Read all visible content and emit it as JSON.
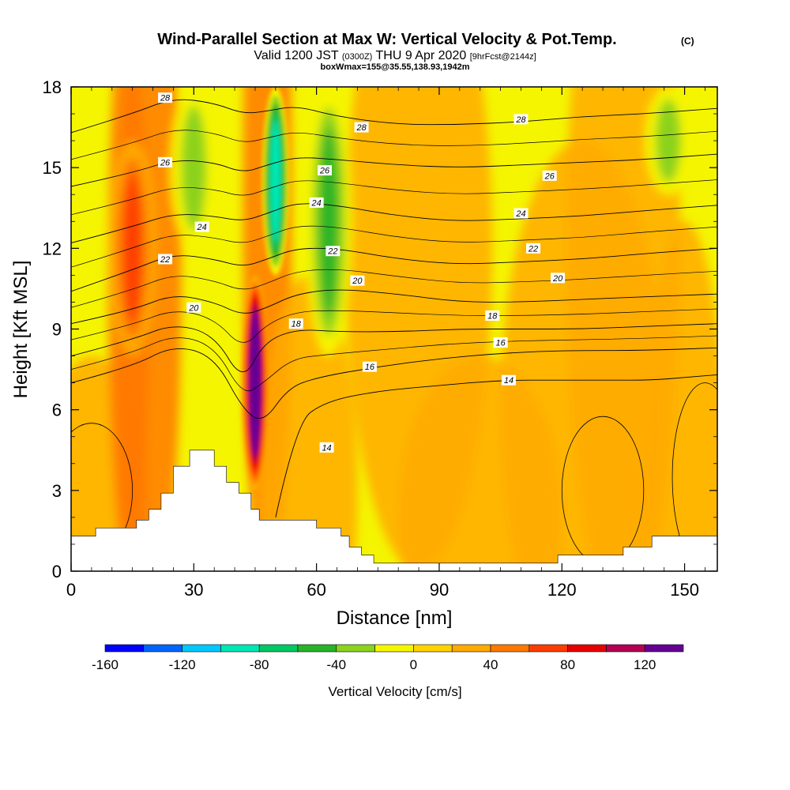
{
  "title": {
    "main": "Wind-Parallel Section at Max W: Vertical Velocity & Pot.Temp.",
    "copyright": "(C)",
    "valid_pre": "Valid 1200 JST",
    "valid_utc": "(0300Z)",
    "valid_post": "THU 9 Apr 2020",
    "forecast": "[9hrFcst@2144z]",
    "box_line": "boxWmax=155@35.55,138.93,1942m"
  },
  "chart_data": {
    "type": "heatmap",
    "xlabel": "Distance [nm]",
    "ylabel": "Height [Kft MSL]",
    "xlim": [
      0,
      158
    ],
    "ylim": [
      0,
      18
    ],
    "x_ticks": [
      "0",
      "30",
      "60",
      "90",
      "120",
      "150"
    ],
    "y_ticks": [
      "0",
      "3",
      "6",
      "9",
      "12",
      "15",
      "18"
    ],
    "x_tick_values": [
      0,
      30,
      60,
      90,
      120,
      150
    ],
    "y_tick_values": [
      0,
      3,
      6,
      9,
      12,
      15,
      18
    ],
    "colorbar": {
      "label": "Vertical Velocity [cm/s]",
      "tick_labels": [
        "-160",
        "-120",
        "-80",
        "-40",
        "0",
        "40",
        "80",
        "120"
      ],
      "tick_values": [
        -160,
        -120,
        -80,
        -40,
        0,
        40,
        80,
        120
      ],
      "levels": [
        -160,
        -140,
        -120,
        -100,
        -80,
        -60,
        -40,
        -20,
        0,
        20,
        40,
        60,
        80,
        100,
        120,
        140
      ],
      "colors": [
        "#0000ff",
        "#0064ff",
        "#00c8ff",
        "#00e6b4",
        "#00c864",
        "#28b428",
        "#8cd21e",
        "#f5f500",
        "#ffd200",
        "#ffaa00",
        "#ff7800",
        "#ff3c00",
        "#e60000",
        "#b40050",
        "#640096"
      ]
    },
    "terrain": [
      [
        0,
        1.3
      ],
      [
        6,
        1.3
      ],
      [
        6,
        1.6
      ],
      [
        16,
        1.6
      ],
      [
        16,
        1.9
      ],
      [
        19,
        1.9
      ],
      [
        19,
        2.3
      ],
      [
        22,
        2.3
      ],
      [
        22,
        2.9
      ],
      [
        25,
        2.9
      ],
      [
        25,
        3.9
      ],
      [
        29,
        3.9
      ],
      [
        29,
        4.5
      ],
      [
        35,
        4.5
      ],
      [
        35,
        3.9
      ],
      [
        38,
        3.9
      ],
      [
        38,
        3.3
      ],
      [
        41,
        3.3
      ],
      [
        41,
        2.9
      ],
      [
        44,
        2.9
      ],
      [
        44,
        2.3
      ],
      [
        46,
        2.3
      ],
      [
        46,
        1.9
      ],
      [
        49,
        1.9
      ],
      [
        49,
        1.9
      ],
      [
        60,
        1.9
      ],
      [
        60,
        1.6
      ],
      [
        66,
        1.6
      ],
      [
        66,
        1.3
      ],
      [
        68,
        1.3
      ],
      [
        68,
        0.9
      ],
      [
        71,
        0.9
      ],
      [
        71,
        0.6
      ],
      [
        74,
        0.6
      ],
      [
        74,
        0.3
      ],
      [
        119,
        0.3
      ],
      [
        119,
        0.6
      ],
      [
        135,
        0.6
      ],
      [
        135,
        0.9
      ],
      [
        142,
        0.9
      ],
      [
        142,
        1.3
      ],
      [
        158,
        1.3
      ]
    ],
    "theta_contours": [
      {
        "level": 14,
        "label": "14",
        "points": [
          [
            50,
            2
          ],
          [
            55,
            5.5
          ],
          [
            62,
            6.3
          ],
          [
            75,
            6.7
          ],
          [
            90,
            6.9
          ],
          [
            105,
            7.1
          ],
          [
            120,
            7.1
          ],
          [
            132,
            7.1
          ],
          [
            142,
            7.1
          ],
          [
            150,
            7.2
          ],
          [
            158,
            7.3
          ]
        ]
      },
      {
        "level": 16,
        "label": "16",
        "points": [
          [
            0,
            7.0
          ],
          [
            15,
            7.6
          ],
          [
            25,
            8.4
          ],
          [
            35,
            8.0
          ],
          [
            42,
            6.0
          ],
          [
            47,
            5.5
          ],
          [
            53,
            6.8
          ],
          [
            60,
            7.2
          ],
          [
            75,
            7.6
          ],
          [
            90,
            7.9
          ],
          [
            105,
            8.1
          ],
          [
            120,
            8.2
          ],
          [
            140,
            8.2
          ],
          [
            158,
            8.3
          ]
        ]
      },
      {
        "level": 18,
        "label": "18",
        "points": [
          [
            0,
            8.0
          ],
          [
            15,
            8.6
          ],
          [
            25,
            9.2
          ],
          [
            35,
            8.8
          ],
          [
            42,
            7.0
          ],
          [
            47,
            8.5
          ],
          [
            55,
            9.0
          ],
          [
            65,
            8.9
          ],
          [
            80,
            8.9
          ],
          [
            95,
            9.0
          ],
          [
            110,
            9.0
          ],
          [
            125,
            9.0
          ],
          [
            140,
            9.1
          ],
          [
            158,
            9.2
          ]
        ]
      },
      {
        "level": 20,
        "label": "20",
        "points": [
          [
            0,
            9.2
          ],
          [
            15,
            9.7
          ],
          [
            25,
            10.3
          ],
          [
            35,
            10.0
          ],
          [
            42,
            9.5
          ],
          [
            48,
            9.8
          ],
          [
            55,
            10.3
          ],
          [
            65,
            10.5
          ],
          [
            80,
            10.3
          ],
          [
            95,
            10.0
          ],
          [
            110,
            10.0
          ],
          [
            125,
            10.1
          ],
          [
            140,
            10.2
          ],
          [
            158,
            10.3
          ]
        ]
      },
      {
        "level": 22,
        "label": "22",
        "points": [
          [
            0,
            10.4
          ],
          [
            15,
            11.2
          ],
          [
            25,
            11.8
          ],
          [
            35,
            11.6
          ],
          [
            42,
            11.3
          ],
          [
            48,
            11.6
          ],
          [
            55,
            12.0
          ],
          [
            65,
            12.0
          ],
          [
            80,
            11.6
          ],
          [
            95,
            11.4
          ],
          [
            110,
            11.5
          ],
          [
            125,
            11.6
          ],
          [
            140,
            11.8
          ],
          [
            158,
            12.0
          ]
        ]
      },
      {
        "level": 24,
        "label": "24",
        "points": [
          [
            0,
            12.2
          ],
          [
            15,
            12.8
          ],
          [
            25,
            13.3
          ],
          [
            35,
            13.2
          ],
          [
            42,
            13.0
          ],
          [
            48,
            13.3
          ],
          [
            55,
            13.7
          ],
          [
            65,
            13.6
          ],
          [
            80,
            13.2
          ],
          [
            95,
            13.0
          ],
          [
            110,
            13.1
          ],
          [
            125,
            13.2
          ],
          [
            140,
            13.4
          ],
          [
            158,
            13.6
          ]
        ]
      },
      {
        "level": 26,
        "label": "26",
        "points": [
          [
            0,
            14.3
          ],
          [
            15,
            14.8
          ],
          [
            25,
            15.3
          ],
          [
            35,
            15.2
          ],
          [
            42,
            14.8
          ],
          [
            48,
            15.1
          ],
          [
            55,
            15.4
          ],
          [
            65,
            15.3
          ],
          [
            80,
            15.1
          ],
          [
            95,
            15.0
          ],
          [
            110,
            15.1
          ],
          [
            125,
            15.2
          ],
          [
            140,
            15.3
          ],
          [
            158,
            15.5
          ]
        ]
      },
      {
        "level": 28,
        "label": "28",
        "points": [
          [
            0,
            16.3
          ],
          [
            15,
            17.0
          ],
          [
            25,
            17.6
          ],
          [
            35,
            17.4
          ],
          [
            42,
            17.0
          ],
          [
            48,
            17.1
          ],
          [
            55,
            17.3
          ],
          [
            65,
            16.9
          ],
          [
            80,
            16.6
          ],
          [
            95,
            16.6
          ],
          [
            110,
            16.7
          ],
          [
            125,
            16.9
          ],
          [
            140,
            17.0
          ],
          [
            158,
            17.2
          ]
        ]
      }
    ],
    "theta_label_positions": [
      {
        "label": "14",
        "at": [
          62.5,
          4.6
        ]
      },
      {
        "label": "16",
        "at": [
          73,
          7.6
        ]
      },
      {
        "label": "18",
        "at": [
          55,
          9.2
        ]
      },
      {
        "label": "20",
        "at": [
          30,
          9.8
        ]
      },
      {
        "label": "22",
        "at": [
          23,
          11.6
        ]
      },
      {
        "label": "24",
        "at": [
          32,
          12.8
        ]
      },
      {
        "label": "26",
        "at": [
          23,
          15.2
        ]
      },
      {
        "label": "28",
        "at": [
          23,
          17.6
        ]
      },
      {
        "label": "18",
        "at": [
          103,
          9.5
        ]
      },
      {
        "label": "16",
        "at": [
          105,
          8.5
        ]
      },
      {
        "label": "14",
        "at": [
          107,
          7.1
        ]
      },
      {
        "label": "20",
        "at": [
          70,
          10.8
        ]
      },
      {
        "label": "22",
        "at": [
          64,
          11.9
        ]
      },
      {
        "label": "24",
        "at": [
          60,
          13.7
        ]
      },
      {
        "label": "26",
        "at": [
          62,
          14.9
        ]
      },
      {
        "label": "28",
        "at": [
          71,
          16.5
        ]
      },
      {
        "label": "20",
        "at": [
          119,
          10.9
        ]
      },
      {
        "label": "22",
        "at": [
          113,
          12.0
        ]
      },
      {
        "label": "24",
        "at": [
          110,
          13.3
        ]
      },
      {
        "label": "26",
        "at": [
          117,
          14.7
        ]
      },
      {
        "label": "28",
        "at": [
          110,
          16.8
        ]
      }
    ],
    "w_features": [
      {
        "kind": "updraft",
        "peak_cm_s": 140,
        "x": 45,
        "y_range": [
          3,
          11
        ]
      },
      {
        "kind": "downdraft",
        "peak_cm_s": -100,
        "x": 50,
        "y_range": [
          11,
          18
        ]
      },
      {
        "kind": "downdraft",
        "peak_cm_s": -50,
        "x": 63,
        "y_range": [
          8,
          18
        ]
      },
      {
        "kind": "downdraft",
        "peak_cm_s": -40,
        "x": 30,
        "y_range": [
          12,
          18
        ]
      },
      {
        "kind": "downdraft",
        "peak_cm_s": -30,
        "x": 146,
        "y_range": [
          14,
          18
        ]
      },
      {
        "kind": "updraft",
        "peak_cm_s": 50,
        "x": 15,
        "y_range": [
          8,
          16
        ]
      }
    ]
  }
}
